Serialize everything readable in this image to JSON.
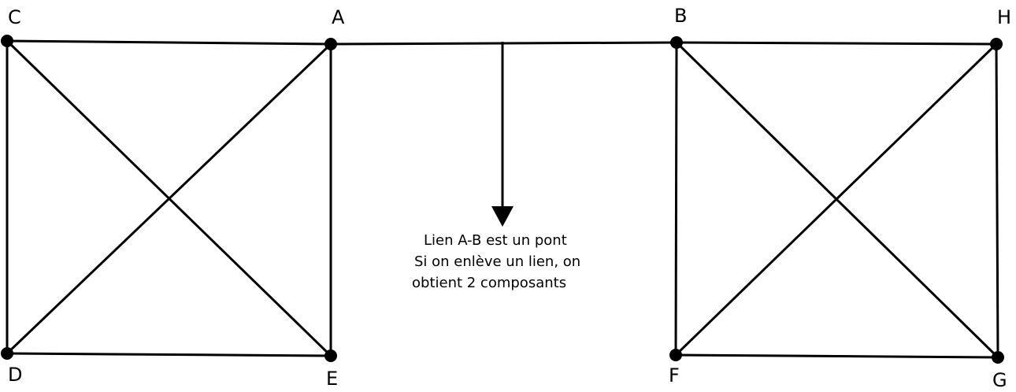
{
  "nodes": [
    {
      "id": "C",
      "label": "C"
    },
    {
      "id": "A",
      "label": "A"
    },
    {
      "id": "D",
      "label": "D"
    },
    {
      "id": "E",
      "label": "E"
    },
    {
      "id": "B",
      "label": "B"
    },
    {
      "id": "H",
      "label": "H"
    },
    {
      "id": "F",
      "label": "F"
    },
    {
      "id": "G",
      "label": "G"
    }
  ],
  "edges": [
    [
      "C",
      "A"
    ],
    [
      "C",
      "D"
    ],
    [
      "C",
      "E"
    ],
    [
      "A",
      "D"
    ],
    [
      "A",
      "E"
    ],
    [
      "D",
      "E"
    ],
    [
      "A",
      "B"
    ],
    [
      "B",
      "H"
    ],
    [
      "B",
      "F"
    ],
    [
      "B",
      "G"
    ],
    [
      "H",
      "F"
    ],
    [
      "H",
      "G"
    ],
    [
      "F",
      "G"
    ]
  ],
  "annotation": {
    "line1": "Lien A-B est un pont",
    "line2": "Si on enlève un lien, on",
    "line3": "obtient 2 composants"
  },
  "colors": {
    "stroke": "#000000",
    "node": "#000000",
    "background": "#ffffff"
  }
}
